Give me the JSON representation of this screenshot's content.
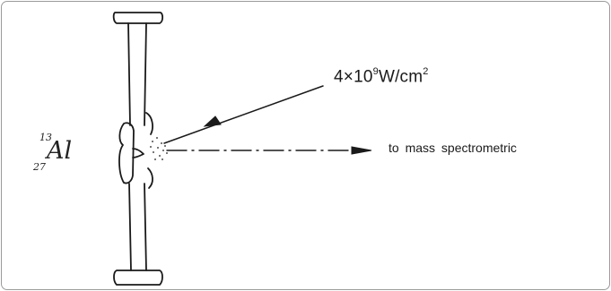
{
  "figure": {
    "laser_intensity": {
      "base": "4×10",
      "exponent": "9",
      "unit_base": "W/cm",
      "unit_exponent": "2"
    },
    "destination_label": "to mass spectrometric",
    "target_nuclide": {
      "atomic_number": "13",
      "symbol": "Al",
      "mass_number": "27"
    }
  },
  "colors": {
    "ink": "#1a1a1a",
    "frame_border": "#9a9a9a",
    "background": "#ffffff"
  }
}
